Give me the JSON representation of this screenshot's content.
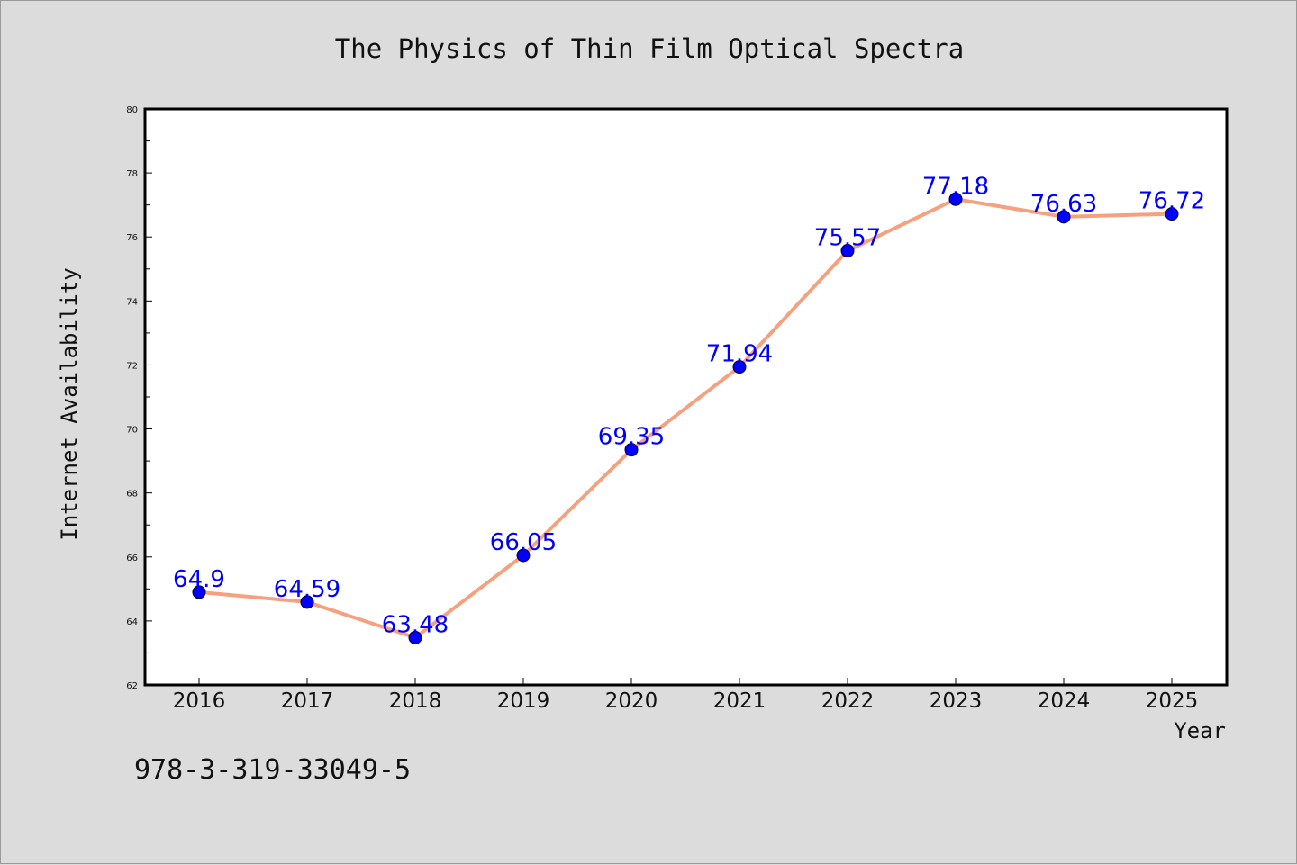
{
  "chart_data": {
    "type": "line",
    "title": "The Physics of Thin Film Optical Spectra",
    "xlabel": "Year",
    "ylabel": "Internet Availability",
    "categories": [
      "2016",
      "2017",
      "2018",
      "2019",
      "2020",
      "2021",
      "2022",
      "2023",
      "2024",
      "2025"
    ],
    "series": [
      {
        "values": [
          64.9,
          64.59,
          63.48,
          66.05,
          69.35,
          71.94,
          75.57,
          77.18,
          76.63,
          76.72
        ]
      }
    ],
    "data_labels": [
      "64.9",
      "64.59",
      "63.48",
      "66.05",
      "69.35",
      "71.94",
      "75.57",
      "77.18",
      "76.63",
      "76.72"
    ],
    "ylim": [
      62,
      80
    ],
    "yticks": [
      "62",
      "64",
      "66",
      "68",
      "70",
      "72",
      "74",
      "76",
      "78",
      "80"
    ],
    "grid": false,
    "legend": "none",
    "line_color": "#f5a07e",
    "marker_color": "#0000ff",
    "label_color": "#0000ff",
    "background": "#dcdcdc"
  },
  "footer": {
    "isbn": "978-3-319-33049-5"
  }
}
